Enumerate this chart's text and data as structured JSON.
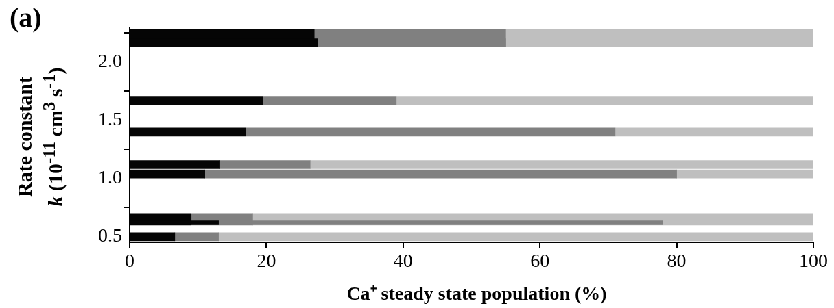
{
  "chart_data": {
    "type": "bar",
    "orientation": "horizontal",
    "stacked": true,
    "xlabel": "Ca⁺ steady state population (%)",
    "ylabel": "Rate constant k (10$^{-11}$ cm$^{3}$ s$^{-1}$)",
    "x": [
      2.21,
      2.17,
      1.67,
      1.4,
      1.12,
      1.04,
      0.65,
      0.62,
      0.5
    ],
    "series": [
      {
        "color": "#050505",
        "values": [
          27,
          27.5,
          19.5,
          17,
          13.2,
          11,
          9,
          13,
          6.6
        ]
      },
      {
        "color": "#808080",
        "values": [
          28,
          27.5,
          19.5,
          54,
          13.2,
          69,
          9,
          65,
          6.4
        ]
      },
      {
        "color": "#bfbfbf",
        "values": [
          45,
          null,
          61,
          29,
          73.6,
          20,
          82,
          null,
          87
        ]
      }
    ],
    "xlim": [
      0,
      100
    ],
    "xticks": [
      0,
      20,
      40,
      60,
      80,
      100
    ],
    "ylim": [
      0.45,
      2.3
    ],
    "yticks": [
      {
        "value": 0.5,
        "label": "0.5"
      },
      {
        "value": 1,
        "label": "1.0"
      },
      {
        "value": 1.5,
        "label": "1.5"
      },
      {
        "value": 2,
        "label": "2.0"
      }
    ],
    "annotations": [
      "(a)"
    ]
  }
}
